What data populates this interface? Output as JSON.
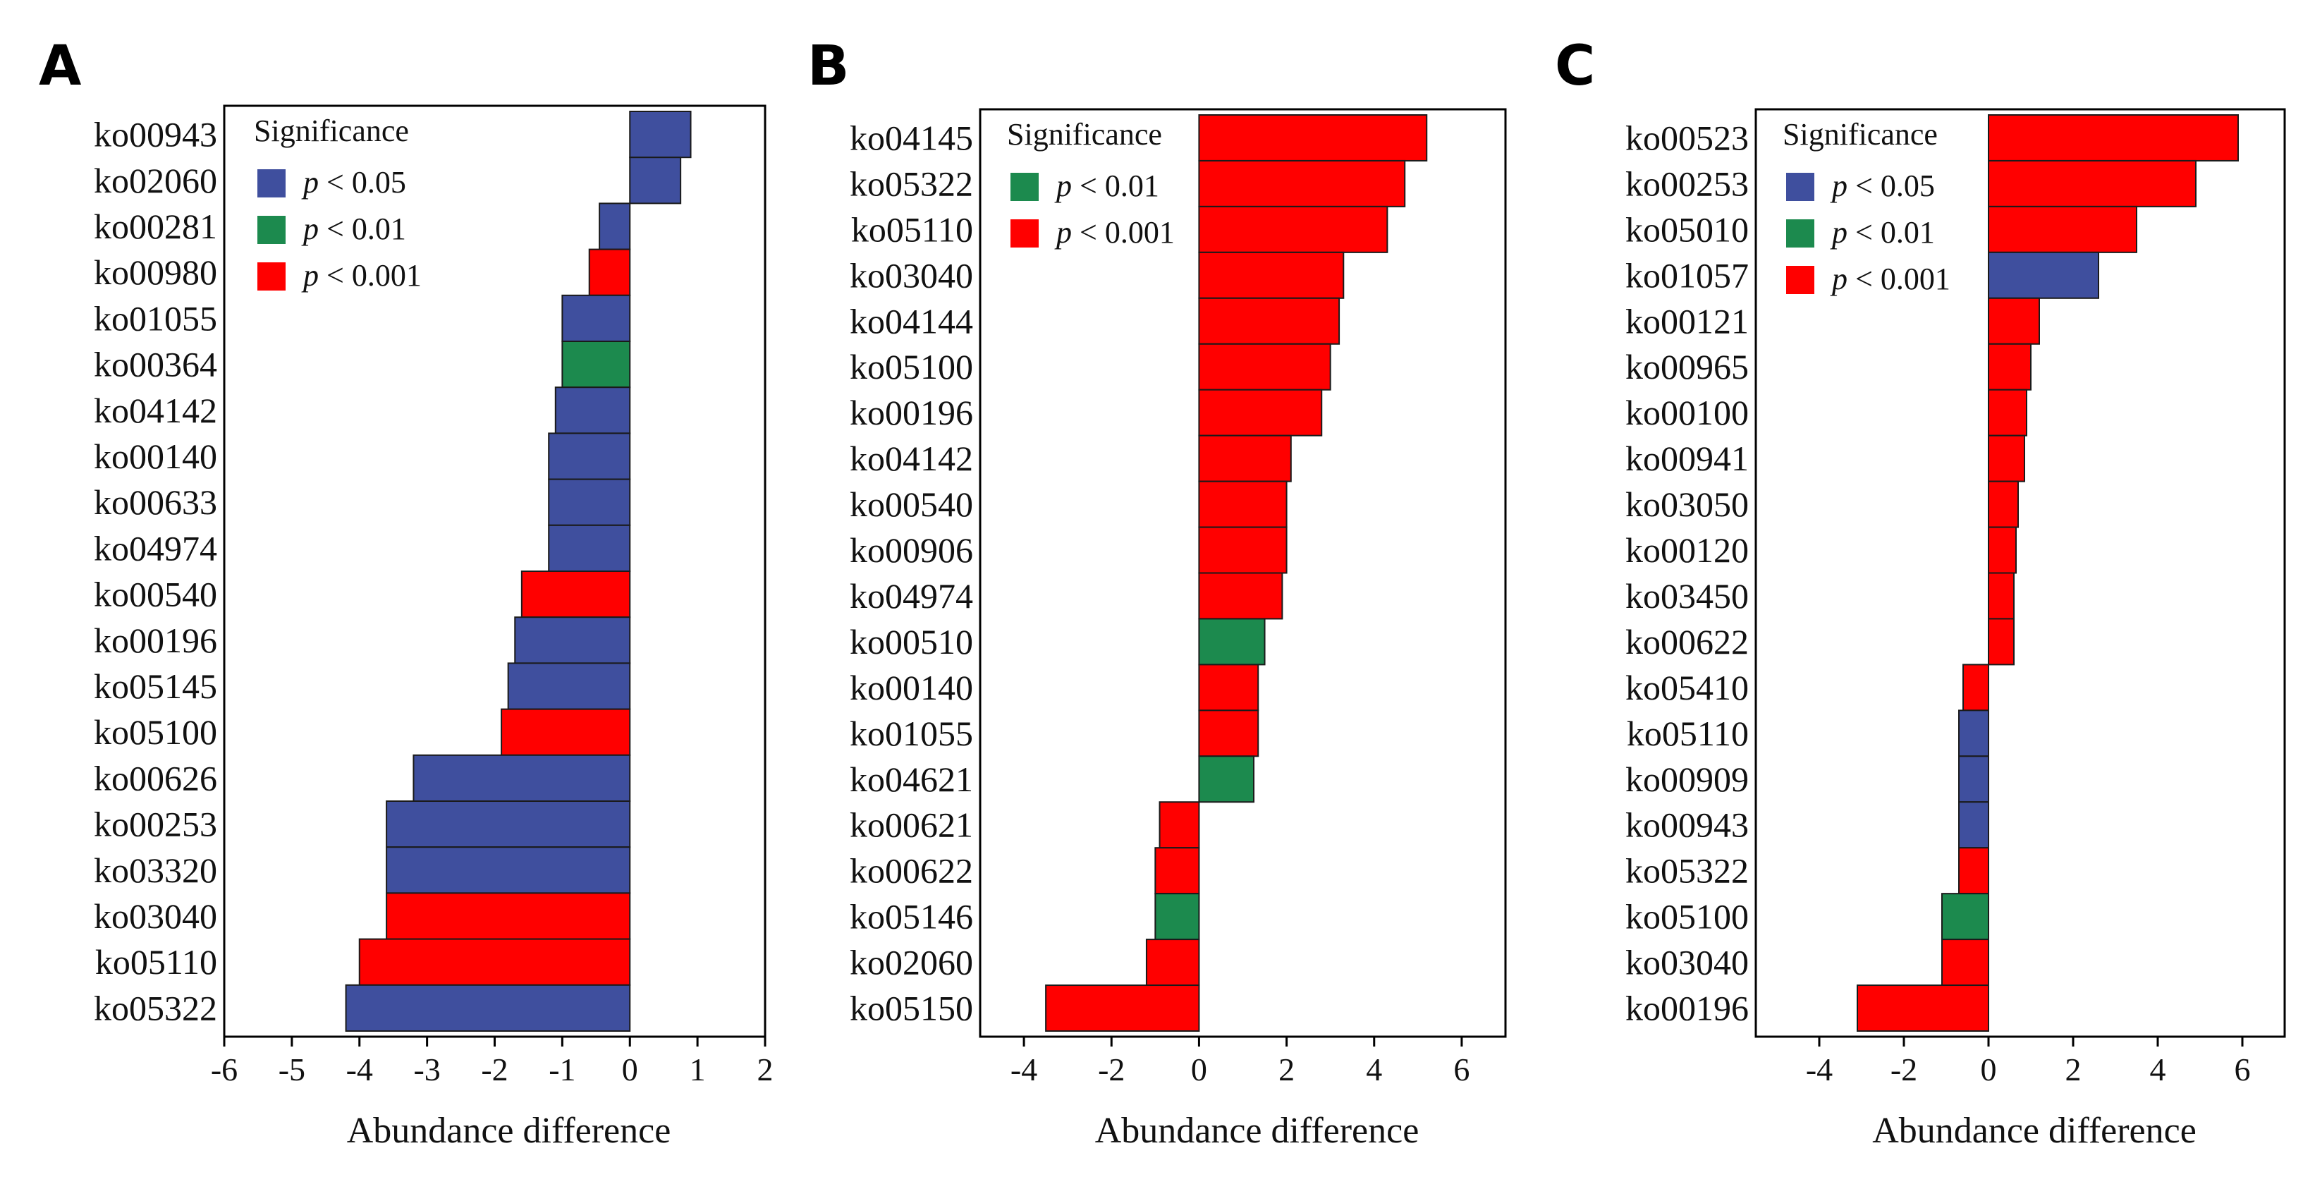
{
  "colors": {
    "p<0.05": "#3f4f9e",
    "p<0.01": "#1c8a4e",
    "p<0.001": "#ff0000",
    "stroke": "#1a1a1a",
    "axis": "#000000"
  },
  "chart_data": [
    {
      "panel": "A",
      "type": "bar",
      "orientation": "horizontal",
      "xlabel": "Abundance difference",
      "xlim": [
        -6,
        2
      ],
      "xticks": [
        -6,
        -5,
        -4,
        -3,
        -2,
        -1,
        0,
        1,
        2
      ],
      "legend": {
        "title": "Significance",
        "entries": [
          {
            "p": "p",
            "rest": " < 0.05",
            "key": "p<0.05"
          },
          {
            "p": "p",
            "rest": " < 0.01",
            "key": "p<0.01"
          },
          {
            "p": "p",
            "rest": " < 0.001",
            "key": "p<0.001"
          }
        ]
      },
      "categories": [
        "ko00943",
        "ko02060",
        "ko00281",
        "ko00980",
        "ko01055",
        "ko00364",
        "ko04142",
        "ko00140",
        "ko00633",
        "ko04974",
        "ko00540",
        "ko00196",
        "ko05145",
        "ko05100",
        "ko00626",
        "ko00253",
        "ko03320",
        "ko03040",
        "ko05110",
        "ko05322"
      ],
      "values": [
        0.9,
        0.75,
        -0.45,
        -0.6,
        -1.0,
        -1.0,
        -1.1,
        -1.2,
        -1.2,
        -1.2,
        -1.6,
        -1.7,
        -1.8,
        -1.9,
        -3.2,
        -3.6,
        -3.6,
        -3.6,
        -4.0,
        -4.2
      ],
      "significance": [
        "p<0.05",
        "p<0.05",
        "p<0.05",
        "p<0.001",
        "p<0.05",
        "p<0.01",
        "p<0.05",
        "p<0.05",
        "p<0.05",
        "p<0.05",
        "p<0.001",
        "p<0.05",
        "p<0.05",
        "p<0.001",
        "p<0.05",
        "p<0.05",
        "p<0.05",
        "p<0.001",
        "p<0.001",
        "p<0.05"
      ]
    },
    {
      "panel": "B",
      "type": "bar",
      "orientation": "horizontal",
      "xlabel": "Abundance difference",
      "xlim": [
        -5,
        7
      ],
      "xticks": [
        -4,
        -2,
        0,
        2,
        4,
        6
      ],
      "legend": {
        "title": "Significance",
        "entries": [
          {
            "p": "p",
            "rest": " < 0.01",
            "key": "p<0.01"
          },
          {
            "p": "p",
            "rest": " < 0.001",
            "key": "p<0.001"
          }
        ]
      },
      "categories": [
        "ko04145",
        "ko05322",
        "ko05110",
        "ko03040",
        "ko04144",
        "ko05100",
        "ko00196",
        "ko04142",
        "ko00540",
        "ko00906",
        "ko04974",
        "ko00510",
        "ko00140",
        "ko01055",
        "ko04621",
        "ko00621",
        "ko00622",
        "ko05146",
        "ko02060",
        "ko05150"
      ],
      "values": [
        5.2,
        4.7,
        4.3,
        3.3,
        3.2,
        3.0,
        2.8,
        2.1,
        2.0,
        2.0,
        1.9,
        1.5,
        1.35,
        1.35,
        1.25,
        -0.9,
        -1.0,
        -1.0,
        -1.2,
        -3.5
      ],
      "significance": [
        "p<0.001",
        "p<0.001",
        "p<0.001",
        "p<0.001",
        "p<0.001",
        "p<0.001",
        "p<0.001",
        "p<0.001",
        "p<0.001",
        "p<0.001",
        "p<0.001",
        "p<0.01",
        "p<0.001",
        "p<0.001",
        "p<0.01",
        "p<0.001",
        "p<0.001",
        "p<0.01",
        "p<0.001",
        "p<0.001"
      ]
    },
    {
      "panel": "C",
      "type": "bar",
      "orientation": "horizontal",
      "xlabel": "Abundance difference",
      "xlim": [
        -5.5,
        7
      ],
      "xticks": [
        -4,
        -2,
        0,
        2,
        4,
        6
      ],
      "legend": {
        "title": "Significance",
        "entries": [
          {
            "p": "p",
            "rest": " < 0.05",
            "key": "p<0.05"
          },
          {
            "p": "p",
            "rest": " < 0.01",
            "key": "p<0.01"
          },
          {
            "p": "p",
            "rest": " < 0.001",
            "key": "p<0.001"
          }
        ]
      },
      "categories": [
        "ko00523",
        "ko00253",
        "ko05010",
        "ko01057",
        "ko00121",
        "ko00965",
        "ko00100",
        "ko00941",
        "ko03050",
        "ko00120",
        "ko03450",
        "ko00622",
        "ko05410",
        "ko05110",
        "ko00909",
        "ko00943",
        "ko05322",
        "ko05100",
        "ko03040",
        "ko00196"
      ],
      "values": [
        5.9,
        4.9,
        3.5,
        2.6,
        1.2,
        1.0,
        0.9,
        0.85,
        0.7,
        0.65,
        0.6,
        0.6,
        -0.6,
        -0.7,
        -0.7,
        -0.7,
        -0.7,
        -1.1,
        -1.1,
        -3.1
      ],
      "significance": [
        "p<0.001",
        "p<0.001",
        "p<0.001",
        "p<0.05",
        "p<0.001",
        "p<0.001",
        "p<0.001",
        "p<0.001",
        "p<0.001",
        "p<0.001",
        "p<0.001",
        "p<0.001",
        "p<0.001",
        "p<0.05",
        "p<0.05",
        "p<0.05",
        "p<0.001",
        "p<0.01",
        "p<0.001",
        "p<0.001"
      ]
    }
  ]
}
